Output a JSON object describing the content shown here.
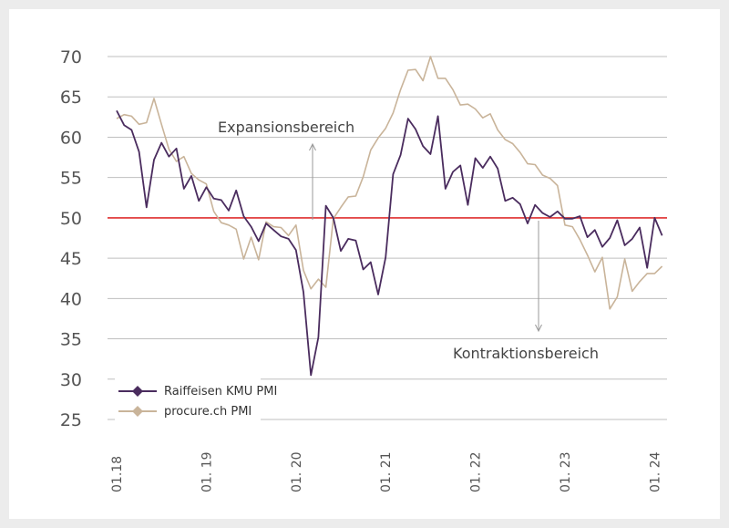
{
  "chart_data": {
    "type": "line",
    "title": "",
    "xlabel": "",
    "ylabel": "",
    "ylim": [
      25,
      70
    ],
    "yticks": [
      "70",
      "65",
      "60",
      "55",
      "50",
      "45",
      "40",
      "35",
      "30",
      "25"
    ],
    "xticks": [
      "01.18",
      "01. 19",
      "01. 20",
      "01. 21",
      "01. 22",
      "01. 23",
      "01. 24"
    ],
    "x_start": "01.18",
    "x_end": "04.24",
    "grid": true,
    "legend_position": "bottom-left",
    "reference_line": {
      "value": 50,
      "color": "#e03131"
    },
    "annotations": {
      "expansion": "Expansionsbereich",
      "contraction": "Kontraktionsbereich"
    },
    "series": [
      {
        "name": "Raiffeisen KMU PMI",
        "color": "#4a2c5e",
        "marker": "diamond",
        "values": [
          63.3,
          61.5,
          60.9,
          58.2,
          51.3,
          57.2,
          59.3,
          57.6,
          58.6,
          53.6,
          55.2,
          52.1,
          53.8,
          52.4,
          52.2,
          50.9,
          53.4,
          50.2,
          48.9,
          47.1,
          49.3,
          48.5,
          47.7,
          47.4,
          46.0,
          40.8,
          30.5,
          35.2,
          51.5,
          50.0,
          45.9,
          47.4,
          47.2,
          43.6,
          44.5,
          40.5,
          45.1,
          55.4,
          57.8,
          62.3,
          61.0,
          58.9,
          57.9,
          62.6,
          53.6,
          55.7,
          56.5,
          51.6,
          57.4,
          56.2,
          57.6,
          56.1,
          52.1,
          52.5,
          51.7,
          49.3,
          51.6,
          50.6,
          50.1,
          50.8,
          49.9,
          49.9,
          50.2,
          47.6,
          48.5,
          46.4,
          47.5,
          49.7,
          46.6,
          47.4,
          48.8,
          43.8,
          50.0,
          47.8
        ]
      },
      {
        "name": "procure.ch PMI",
        "color": "#c9b49a",
        "marker": "diamond",
        "values": [
          62.3,
          62.8,
          62.6,
          61.6,
          61.8,
          64.8,
          61.6,
          58.5,
          57.0,
          57.6,
          55.5,
          54.7,
          54.2,
          50.8,
          49.4,
          49.1,
          48.6,
          44.9,
          47.6,
          44.8,
          49.5,
          48.9,
          48.8,
          47.8,
          49.1,
          43.5,
          41.2,
          42.4,
          41.4,
          49.9,
          51.3,
          52.6,
          52.7,
          55.1,
          58.4,
          59.9,
          61.1,
          63.0,
          65.9,
          68.3,
          68.4,
          67.0,
          70.0,
          67.3,
          67.3,
          65.9,
          64.0,
          64.1,
          63.5,
          62.4,
          62.9,
          60.9,
          59.7,
          59.2,
          58.1,
          56.7,
          56.6,
          55.3,
          54.9,
          54.0,
          49.1,
          48.9,
          47.3,
          45.4,
          43.3,
          45.1,
          38.7,
          40.2,
          44.9,
          40.9,
          42.1,
          43.1,
          43.1,
          44.0
        ]
      }
    ]
  }
}
